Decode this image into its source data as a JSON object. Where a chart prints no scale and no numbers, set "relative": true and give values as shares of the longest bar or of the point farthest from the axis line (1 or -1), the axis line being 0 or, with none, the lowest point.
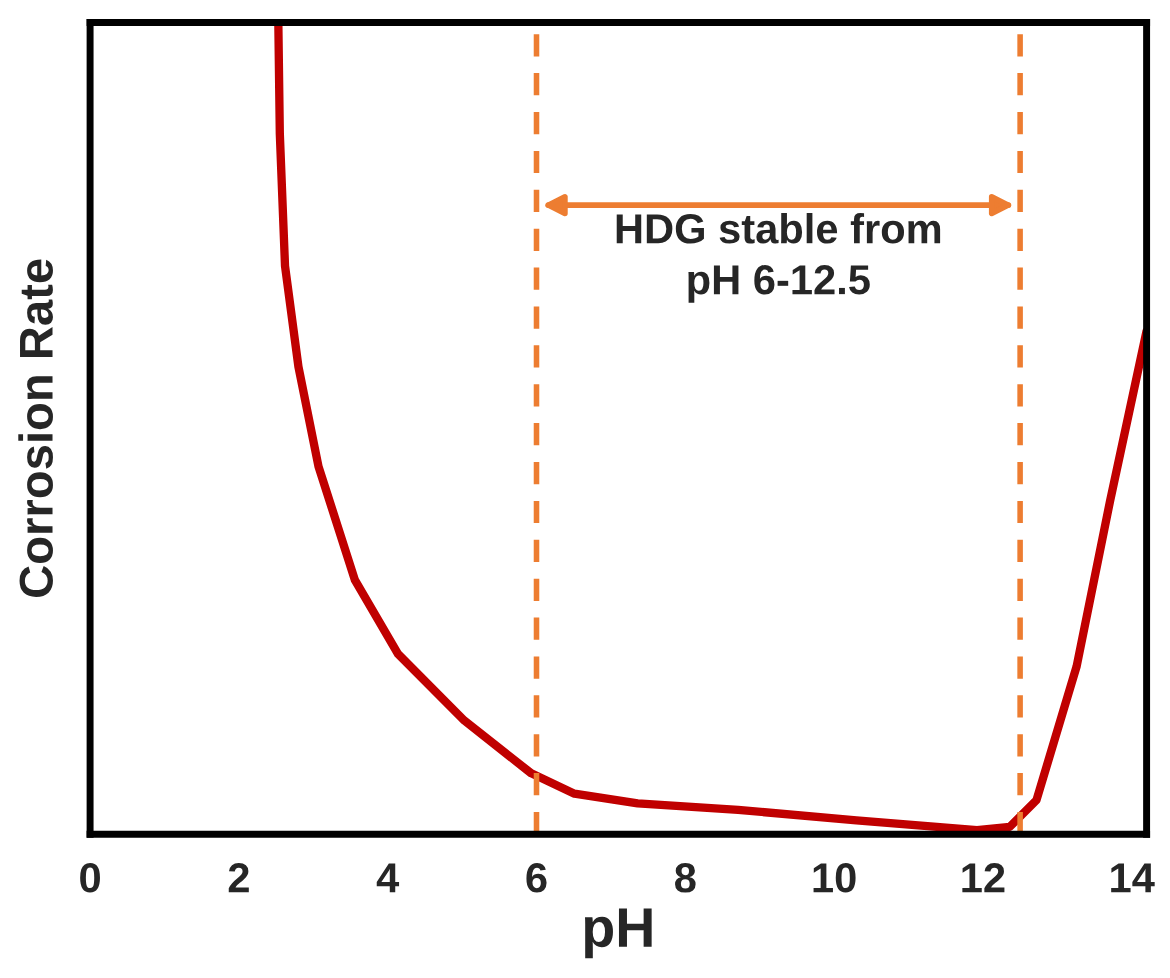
{
  "chart_data": {
    "type": "line",
    "xlabel": "pH",
    "ylabel": "Corrosion Rate",
    "relative": true,
    "xlim": [
      0,
      14.2
    ],
    "xticks": [
      0,
      2,
      4,
      6,
      8,
      10,
      12,
      14
    ],
    "series": [
      {
        "color": "#c00000",
        "x": [
          2.53,
          2.55,
          2.62,
          2.8,
          3.07,
          3.56,
          4.14,
          5.03,
          5.93,
          6.51,
          7.36,
          8.71,
          10.3,
          11.92,
          12.36,
          12.72,
          13.26,
          13.71,
          14.2
        ],
        "values": [
          1.0,
          0.863,
          0.7,
          0.576,
          0.453,
          0.313,
          0.222,
          0.14,
          0.075,
          0.05,
          0.038,
          0.03,
          0.017,
          0.005,
          0.009,
          0.042,
          0.207,
          0.411,
          0.62
        ]
      }
    ],
    "ref_lines": [
      {
        "axis": "x",
        "value": 6,
        "color": "#ed7d31",
        "line_style": "dashed"
      },
      {
        "axis": "x",
        "value": 12.5,
        "color": "#ed7d31",
        "line_style": "dashed"
      }
    ],
    "annotations": [
      "HDG stable from\npH 6-12.5"
    ],
    "grid": false,
    "legend": false
  }
}
